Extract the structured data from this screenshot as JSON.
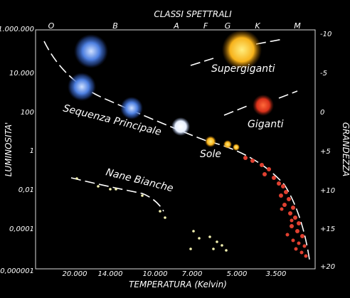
{
  "header": {
    "title": "CLASSI SPETTRALI"
  },
  "spectral_classes": [
    "O",
    "B",
    "A",
    "F",
    "G",
    "K",
    "M"
  ],
  "luminosity_axis": {
    "label": "LUMINOSITA'",
    "ticks": [
      "1.000.000",
      "10.000",
      "100",
      "1",
      "0,01",
      "0,0001",
      "0,000001"
    ]
  },
  "magnitude_axis": {
    "label": "GRANDEZZA",
    "ticks": [
      "-10",
      "-5",
      "0",
      "+5",
      "+10",
      "+15",
      "+20"
    ]
  },
  "temperature_axis": {
    "label": "TEMPERATURA (Kelvin)",
    "ticks": [
      "20.000",
      "14.000",
      "10.000",
      "7.000",
      "5.000",
      "3.500"
    ]
  },
  "annotations": {
    "supergiants": "Supergiganti",
    "giants": "Giganti",
    "main_sequence": "Sequenza Principale",
    "sun": "Sole",
    "white_dwarfs": "Nane Bianche"
  }
}
